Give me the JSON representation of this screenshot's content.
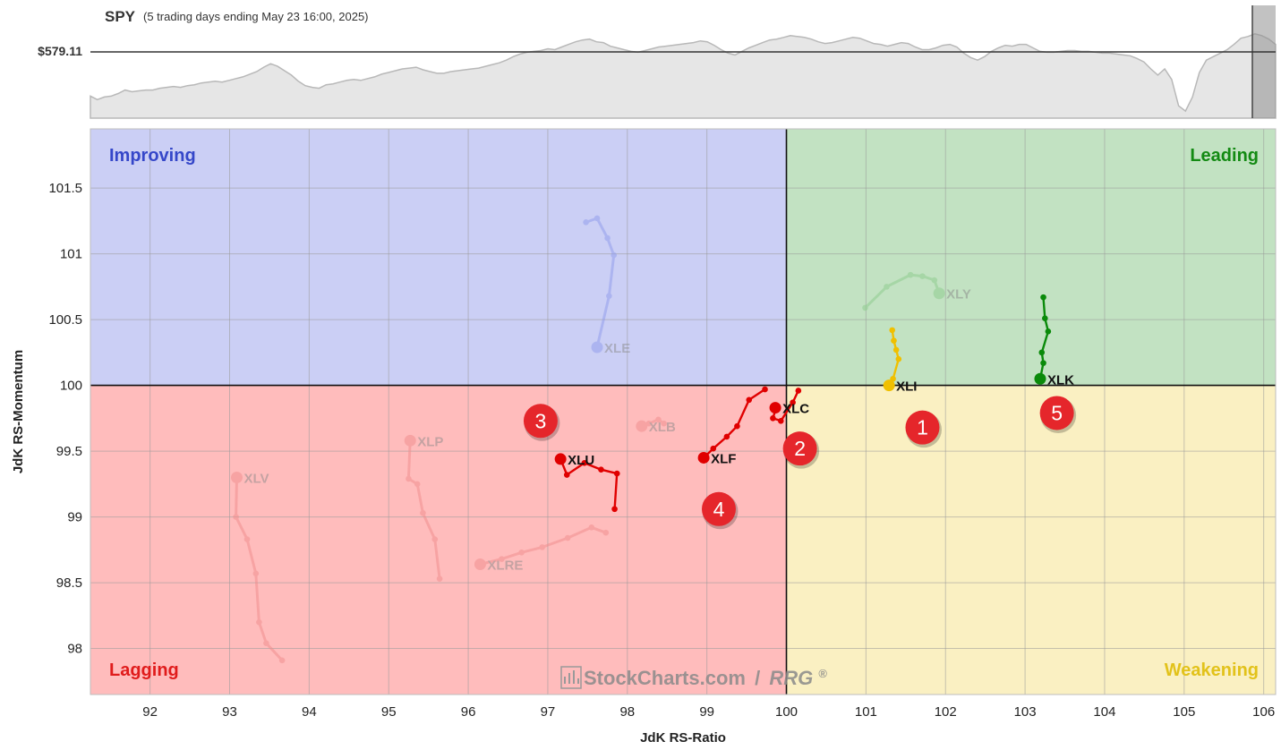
{
  "header": {
    "symbol": "SPY",
    "period": "(5 trading days ending May 23 16:00, 2025)",
    "price_label": "$579.11"
  },
  "colors": {
    "improving": "#cbcff5",
    "leading": "#c2e2c2",
    "lagging": "#ffbcbc",
    "weakening": "#faf0c2",
    "improving_text": "#3547c9",
    "leading_text": "#138a13",
    "lagging_text": "#e01c1c",
    "weakening_text": "#e2c21a",
    "badge": "#e5262b"
  },
  "chart_data": {
    "type": "scatter",
    "subtype": "relative-rotation-graph",
    "xlabel": "JdK RS-Ratio",
    "ylabel": "JdK RS-Momentum",
    "xlim": [
      91.25,
      106.15
    ],
    "ylim": [
      97.65,
      101.95
    ],
    "x_ticks": [
      92,
      93,
      94,
      95,
      96,
      97,
      98,
      99,
      100,
      101,
      102,
      103,
      104,
      105,
      106
    ],
    "y_ticks": [
      98,
      98.5,
      99,
      99.5,
      100,
      100.5,
      101,
      101.5
    ],
    "y_tick_labels": [
      "98",
      "98.5",
      "99",
      "99.5",
      "100",
      "100.5",
      "101",
      "101.5"
    ],
    "x_tick_labels": [
      "92",
      "93",
      "94",
      "95",
      "96",
      "97",
      "98",
      "99",
      "100",
      "101",
      "102",
      "103",
      "104",
      "105",
      "106"
    ],
    "center": [
      100,
      100
    ],
    "grid": true,
    "quadrants": [
      {
        "key": "improving",
        "label": "Improving",
        "position": "top-left"
      },
      {
        "key": "leading",
        "label": "Leading",
        "position": "top-right"
      },
      {
        "key": "lagging",
        "label": "Lagging",
        "position": "bottom-left"
      },
      {
        "key": "weakening",
        "label": "Weakening",
        "position": "bottom-right"
      }
    ],
    "series": [
      {
        "name": "XLE",
        "faded": true,
        "color": "#8f9bec",
        "points": [
          [
            97.48,
            101.24
          ],
          [
            97.62,
            101.27
          ],
          [
            97.75,
            101.12
          ],
          [
            97.83,
            100.99
          ],
          [
            97.77,
            100.68
          ],
          [
            97.62,
            100.29
          ]
        ]
      },
      {
        "name": "XLY",
        "faded": true,
        "color": "#8ccc8c",
        "points": [
          [
            100.99,
            100.59
          ],
          [
            101.26,
            100.75
          ],
          [
            101.56,
            100.84
          ],
          [
            101.71,
            100.83
          ],
          [
            101.86,
            100.8
          ],
          [
            101.92,
            100.7
          ]
        ]
      },
      {
        "name": "XLI",
        "faded": false,
        "color": "#f0c000",
        "points": [
          [
            101.33,
            100.42
          ],
          [
            101.35,
            100.34
          ],
          [
            101.38,
            100.27
          ],
          [
            101.41,
            100.2
          ],
          [
            101.34,
            100.05
          ],
          [
            101.29,
            100.0
          ]
        ]
      },
      {
        "name": "XLK",
        "faded": false,
        "color": "#0a8a0a",
        "points": [
          [
            103.23,
            100.67
          ],
          [
            103.25,
            100.51
          ],
          [
            103.29,
            100.41
          ],
          [
            103.21,
            100.25
          ],
          [
            103.23,
            100.17
          ],
          [
            103.19,
            100.05
          ]
        ]
      },
      {
        "name": "XLC",
        "faded": false,
        "color": "#e00000",
        "points": [
          [
            100.15,
            99.96
          ],
          [
            100.08,
            99.87
          ],
          [
            99.93,
            99.73
          ],
          [
            99.83,
            99.75
          ],
          [
            99.87,
            99.83
          ],
          [
            99.86,
            99.83
          ]
        ]
      },
      {
        "name": "XLF",
        "faded": false,
        "color": "#e00000",
        "points": [
          [
            99.73,
            99.97
          ],
          [
            99.53,
            99.89
          ],
          [
            99.38,
            99.69
          ],
          [
            99.25,
            99.61
          ],
          [
            99.08,
            99.52
          ],
          [
            98.96,
            99.45
          ]
        ]
      },
      {
        "name": "XLU",
        "faded": false,
        "color": "#e00000",
        "points": [
          [
            97.84,
            99.06
          ],
          [
            97.87,
            99.33
          ],
          [
            97.67,
            99.36
          ],
          [
            97.46,
            99.41
          ],
          [
            97.24,
            99.32
          ],
          [
            97.16,
            99.44
          ]
        ]
      },
      {
        "name": "XLB",
        "faded": true,
        "color": "#f08c8c",
        "points": [
          [
            98.46,
            99.71
          ],
          [
            98.39,
            99.74
          ],
          [
            98.27,
            99.71
          ],
          [
            98.18,
            99.69
          ]
        ]
      },
      {
        "name": "XLP",
        "faded": true,
        "color": "#f08c8c",
        "points": [
          [
            95.64,
            98.53
          ],
          [
            95.58,
            98.83
          ],
          [
            95.43,
            99.03
          ],
          [
            95.36,
            99.25
          ],
          [
            95.25,
            99.29
          ],
          [
            95.27,
            99.58
          ]
        ]
      },
      {
        "name": "XLRE",
        "faded": true,
        "color": "#f08c8c",
        "points": [
          [
            97.73,
            98.88
          ],
          [
            97.55,
            98.92
          ],
          [
            97.25,
            98.84
          ],
          [
            96.93,
            98.77
          ],
          [
            96.67,
            98.73
          ],
          [
            96.42,
            98.68
          ],
          [
            96.15,
            98.64
          ]
        ]
      },
      {
        "name": "XLV",
        "faded": true,
        "color": "#f08c8c",
        "points": [
          [
            93.66,
            97.91
          ],
          [
            93.46,
            98.04
          ],
          [
            93.37,
            98.2
          ],
          [
            93.33,
            98.57
          ],
          [
            93.22,
            98.83
          ],
          [
            93.08,
            99.0
          ],
          [
            93.09,
            99.3
          ]
        ]
      }
    ],
    "badges": [
      {
        "text": "1",
        "x": 101.71,
        "y": 99.68
      },
      {
        "text": "2",
        "x": 100.17,
        "y": 99.52
      },
      {
        "text": "3",
        "x": 96.91,
        "y": 99.73
      },
      {
        "text": "4",
        "x": 99.15,
        "y": 99.06
      },
      {
        "text": "5",
        "x": 103.4,
        "y": 99.79
      }
    ],
    "price_series": [
      0.21,
      0.17,
      0.2,
      0.21,
      0.24,
      0.28,
      0.26,
      0.27,
      0.28,
      0.28,
      0.3,
      0.31,
      0.32,
      0.31,
      0.33,
      0.34,
      0.36,
      0.37,
      0.38,
      0.37,
      0.39,
      0.41,
      0.43,
      0.46,
      0.49,
      0.54,
      0.58,
      0.55,
      0.5,
      0.45,
      0.38,
      0.33,
      0.31,
      0.3,
      0.34,
      0.35,
      0.37,
      0.39,
      0.4,
      0.39,
      0.41,
      0.43,
      0.46,
      0.48,
      0.5,
      0.52,
      0.53,
      0.54,
      0.51,
      0.49,
      0.47,
      0.47,
      0.49,
      0.5,
      0.51,
      0.52,
      0.53,
      0.55,
      0.57,
      0.59,
      0.62,
      0.66,
      0.69,
      0.71,
      0.72,
      0.73,
      0.75,
      0.74,
      0.77,
      0.8,
      0.83,
      0.85,
      0.86,
      0.83,
      0.82,
      0.78,
      0.76,
      0.74,
      0.72,
      0.71,
      0.73,
      0.75,
      0.77,
      0.78,
      0.79,
      0.8,
      0.81,
      0.82,
      0.84,
      0.83,
      0.79,
      0.74,
      0.7,
      0.68,
      0.72,
      0.76,
      0.79,
      0.82,
      0.85,
      0.86,
      0.88,
      0.9,
      0.89,
      0.88,
      0.86,
      0.83,
      0.81,
      0.82,
      0.84,
      0.86,
      0.88,
      0.87,
      0.84,
      0.81,
      0.8,
      0.78,
      0.8,
      0.82,
      0.81,
      0.77,
      0.74,
      0.74,
      0.76,
      0.79,
      0.8,
      0.77,
      0.7,
      0.65,
      0.62,
      0.66,
      0.72,
      0.76,
      0.79,
      0.78,
      0.8,
      0.8,
      0.76,
      0.72,
      0.71,
      0.71,
      0.72,
      0.73,
      0.73,
      0.72,
      0.72,
      0.71,
      0.7,
      0.7,
      0.69,
      0.68,
      0.67,
      0.64,
      0.6,
      0.52,
      0.45,
      0.52,
      0.4,
      0.1,
      0.04,
      0.2,
      0.48,
      0.62,
      0.66,
      0.7,
      0.74,
      0.8,
      0.87,
      0.89,
      0.92,
      0.9,
      0.86,
      0.8
    ],
    "price_ref_level": 0.7,
    "watermark": {
      "brand": "StockCharts.com",
      "sep": "/",
      "product": "RRG",
      "mark": "®"
    }
  }
}
